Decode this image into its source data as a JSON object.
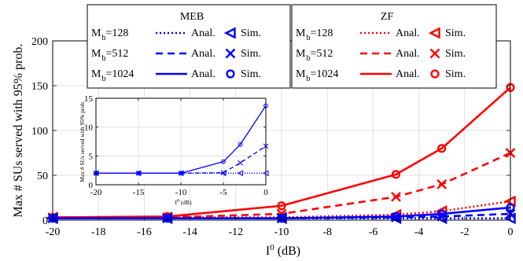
{
  "chart_data": [
    {
      "type": "line",
      "xlabel": "I",
      "xlabel_sup": "0",
      "xlabel_unit": " (dB)",
      "ylabel": "Max # SUs served with 95% prob.",
      "xlim": [
        -20,
        0
      ],
      "ylim": [
        0,
        200
      ],
      "xticks": [
        -20,
        -18,
        -16,
        -14,
        -12,
        -10,
        -8,
        -6,
        -4,
        -2,
        0
      ],
      "yticks": [
        0,
        50,
        100,
        150,
        200
      ],
      "grid": true,
      "legend_placement": "top",
      "x": [
        -20,
        -15,
        -10,
        -5,
        -3,
        0
      ],
      "legend": [
        {
          "title": "MEB",
          "rows": [
            {
              "m": "M",
              "sub": "b",
              "value": "=128",
              "anal": "Anal.",
              "sim": "Sim."
            },
            {
              "m": "M",
              "sub": "b",
              "value": "=512",
              "anal": "Anal.",
              "sim": "Sim."
            },
            {
              "m": "M",
              "sub": "b",
              "value": "=1024",
              "anal": "Anal.",
              "sim": "Sim."
            }
          ]
        },
        {
          "title": "ZF",
          "rows": [
            {
              "m": "M",
              "sub": "b",
              "value": "=128",
              "anal": "Anal.",
              "sim": "Sim."
            },
            {
              "m": "M",
              "sub": "b",
              "value": "=512",
              "anal": "Anal.",
              "sim": "Sim."
            },
            {
              "m": "M",
              "sub": "b",
              "value": "=1024",
              "anal": "Anal.",
              "sim": "Sim."
            }
          ]
        }
      ],
      "series": [
        {
          "scheme": "ZF",
          "Mb": 1024,
          "color": "#ff0000",
          "dash": "solid",
          "marker": "circle",
          "values": [
            3,
            4,
            16,
            51,
            80,
            148
          ]
        },
        {
          "scheme": "ZF",
          "Mb": 512,
          "color": "#ff0000",
          "dash": "dashed",
          "marker": "x",
          "values": [
            3,
            3,
            7,
            26,
            40,
            75
          ]
        },
        {
          "scheme": "ZF",
          "Mb": 128,
          "color": "#ff0000",
          "dash": "dotted",
          "marker": "triangle-left",
          "values": [
            3,
            3,
            3,
            6,
            10,
            21
          ]
        },
        {
          "scheme": "MEB",
          "Mb": 1024,
          "color": "#0000ff",
          "dash": "solid",
          "marker": "circle",
          "values": [
            2,
            2,
            2,
            4,
            7,
            14
          ]
        },
        {
          "scheme": "MEB",
          "Mb": 512,
          "color": "#0000ff",
          "dash": "dashed",
          "marker": "x",
          "values": [
            2,
            2,
            2,
            3,
            4,
            7
          ]
        },
        {
          "scheme": "MEB",
          "Mb": 128,
          "color": "#0000ff",
          "dash": "dotted",
          "marker": "triangle-left",
          "values": [
            2,
            2,
            2,
            2,
            2,
            2
          ]
        }
      ]
    },
    {
      "type": "line",
      "xlabel": "I",
      "xlabel_sup": "0",
      "xlabel_unit": " (dB)",
      "ylabel": "Max # SUs served with 95% prob.",
      "xlim": [
        -20,
        0
      ],
      "ylim": [
        0,
        15
      ],
      "xticks": [
        -20,
        -15,
        -10,
        -5,
        0
      ],
      "yticks": [
        0,
        5,
        10,
        15
      ],
      "grid": true,
      "x": [
        -20,
        -15,
        -10,
        -5,
        -3,
        0
      ],
      "series": [
        {
          "scheme": "MEB",
          "Mb": 1024,
          "color": "#0000ff",
          "dash": "solid",
          "marker": "circle",
          "values": [
            2,
            2,
            2,
            4,
            7,
            13.7
          ]
        },
        {
          "scheme": "MEB",
          "Mb": 512,
          "color": "#0000ff",
          "dash": "dashed",
          "marker": "x",
          "values": [
            2,
            2,
            2,
            2.1,
            3.8,
            6.7
          ]
        },
        {
          "scheme": "MEB",
          "Mb": 128,
          "color": "#0000ff",
          "dash": "dotted",
          "marker": "triangle-left",
          "values": [
            2,
            2,
            2,
            2,
            2,
            2
          ]
        }
      ]
    }
  ]
}
